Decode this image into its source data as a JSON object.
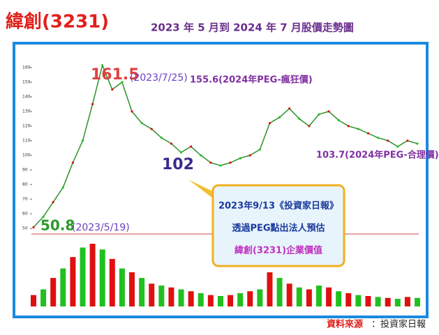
{
  "chart_data": {
    "type": "line",
    "title": "緯創(3231)",
    "subtitle": "2023 年 5 月到 2024 年 7 月股價走勢圖",
    "categories": [
      null,
      null,
      null,
      null,
      null,
      null,
      null,
      null,
      null,
      null,
      null,
      null,
      null,
      null,
      null,
      null,
      null,
      null,
      null,
      null,
      null,
      null,
      null,
      null,
      null,
      null,
      null,
      null,
      null,
      null,
      null,
      null,
      null,
      null,
      null,
      null,
      null,
      null,
      null,
      null
    ],
    "values": [
      50.8,
      58,
      68,
      78,
      95,
      110,
      135,
      161.5,
      145,
      150,
      130,
      122,
      118,
      112,
      108,
      102,
      106,
      100,
      95,
      93,
      95,
      98,
      100,
      104,
      122,
      126,
      132,
      125,
      120,
      128,
      130,
      124,
      120,
      118,
      115,
      112,
      110,
      106,
      110,
      108
    ],
    "color": "#2f8f2f",
    "volume": {
      "values": [
        60,
        90,
        150,
        200,
        260,
        310,
        330,
        300,
        250,
        200,
        180,
        150,
        120,
        110,
        100,
        90,
        80,
        70,
        60,
        55,
        60,
        70,
        80,
        90,
        180,
        150,
        120,
        100,
        90,
        110,
        100,
        80,
        70,
        60,
        55,
        50,
        45,
        40,
        50,
        45
      ],
      "colors": [
        "#e01010",
        "#20c020"
      ]
    },
    "ylim": [
      45,
      165
    ],
    "yticks": [
      50,
      60,
      70,
      80,
      90,
      100,
      110,
      120,
      130,
      140,
      150,
      160
    ],
    "annotations": {
      "peak": "161.5",
      "peak_date": "(2023/7/25)",
      "crazy": "155.6(2024年PEG-瘋狂價)",
      "mid": "102",
      "fair": "103.7(2024年PEG-合理價)",
      "low": "50.8",
      "low_date": "(2023/5/19)"
    },
    "callout": [
      "2023年9/13《投資家日報》",
      "透過PEG點出法人預估",
      "緯創(3231)企業價值"
    ],
    "source_label": "資料來源",
    "source_text": "：投資家日報"
  }
}
